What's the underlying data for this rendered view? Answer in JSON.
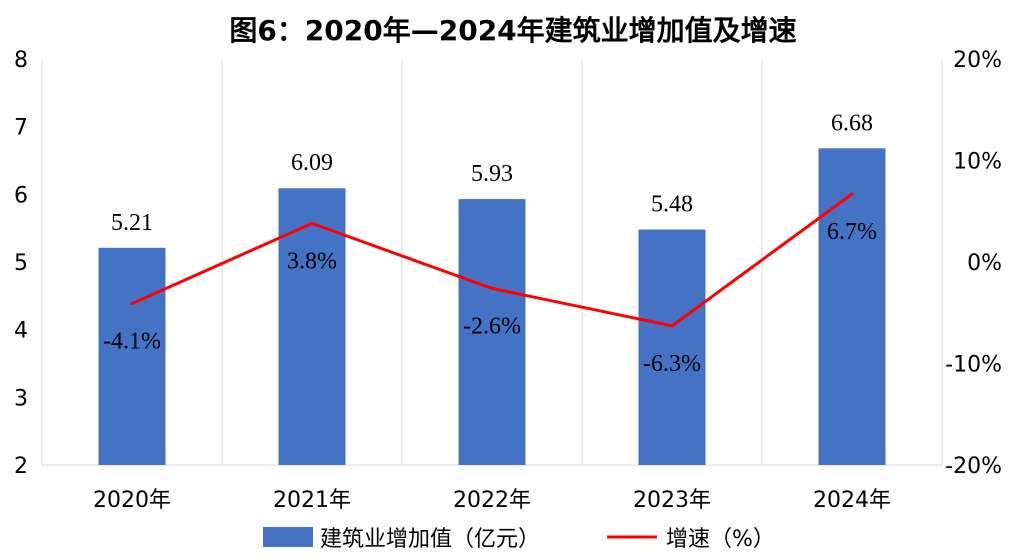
{
  "chart_data": {
    "type": "bar",
    "title": "图6：2020年—2024年建筑业增加值及增速",
    "categories": [
      "2020年",
      "2021年",
      "2022年",
      "2023年",
      "2024年"
    ],
    "series": [
      {
        "name": "建筑业增加值（亿元）",
        "kind": "bar",
        "axis": "left",
        "color": "#4472c4",
        "values": [
          5.21,
          6.09,
          5.93,
          5.48,
          6.68
        ],
        "labels": [
          "5.21",
          "6.09",
          "5.93",
          "5.48",
          "6.68"
        ]
      },
      {
        "name": "增速（%）",
        "kind": "line",
        "axis": "right",
        "color": "#ff0000",
        "values": [
          -4.1,
          3.8,
          -2.6,
          -6.3,
          6.7
        ],
        "labels": [
          "-4.1%",
          "3.8%",
          "-2.6%",
          "-6.3%",
          "6.7%"
        ]
      }
    ],
    "left_axis": {
      "ylim": [
        2,
        8
      ],
      "ticks": [
        "2",
        "3",
        "4",
        "5",
        "6",
        "7",
        "8"
      ]
    },
    "right_axis": {
      "ylim": [
        -20,
        20
      ],
      "ticks": [
        "-20%",
        "-10%",
        "0%",
        "10%",
        "20%"
      ]
    },
    "grid": "vertical",
    "legend_position": "bottom"
  }
}
